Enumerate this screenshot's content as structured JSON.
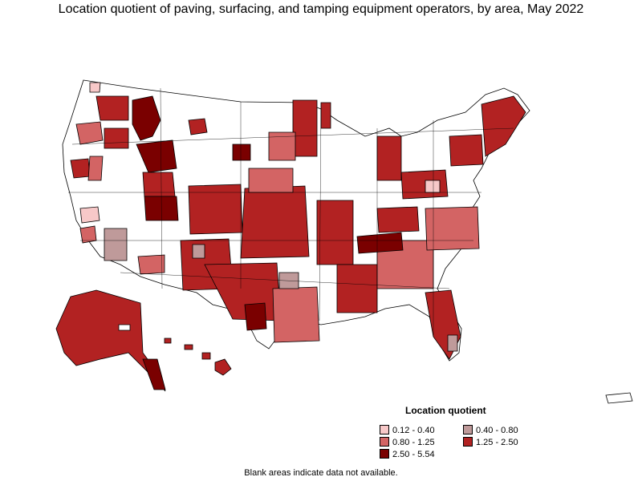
{
  "title": "Location quotient of paving, surfacing, and tamping equipment operators, by area, May 2022",
  "legend": {
    "title": "Location quotient",
    "items": [
      {
        "label": "0.12 - 0.40",
        "color": "#f7c8c8"
      },
      {
        "label": "0.40 - 0.80",
        "color": "#bf9a9a"
      },
      {
        "label": "0.80 - 1.25",
        "color": "#d36464"
      },
      {
        "label": "1.25 - 2.50",
        "color": "#b22222"
      },
      {
        "label": "2.50 - 5.54",
        "color": "#7a0000"
      }
    ]
  },
  "footnote": "Blank areas indicate data not available.",
  "colors": {
    "no_data": "#ffffff",
    "border": "#000000"
  }
}
